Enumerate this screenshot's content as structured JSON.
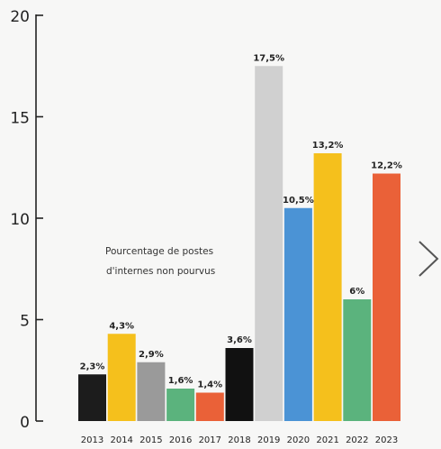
{
  "chart_data": {
    "type": "bar",
    "categories": [
      "2013",
      "2014",
      "2015",
      "2016",
      "2017",
      "2018",
      "2019",
      "2020",
      "2021",
      "2022",
      "2023"
    ],
    "values": [
      2.3,
      4.3,
      2.9,
      1.6,
      1.4,
      3.6,
      17.5,
      10.5,
      13.2,
      6,
      12.2
    ],
    "value_labels": [
      "2,3%",
      "4,3%",
      "2,9%",
      "1,6%",
      "1,4%",
      "3,6%",
      "17,5%",
      "10,5%",
      "13,2%",
      "6%",
      "12,2%"
    ],
    "bar_colors": [
      "#1c1c1c",
      "#f5c01c",
      "#9a9a9a",
      "#5bb37d",
      "#ea6138",
      "#111111",
      "#d0d0d0",
      "#4b93d5",
      "#f5c01c",
      "#5bb37d",
      "#ea6138"
    ],
    "yticks": [
      0,
      5,
      10,
      15,
      20
    ],
    "ylim": [
      0,
      20
    ],
    "annotation_lines": [
      "Pourcentage de postes",
      "d'internes non pourvus"
    ],
    "grid": false,
    "title": "",
    "xlabel": "",
    "ylabel": ""
  },
  "nav": {
    "next_icon": "chevron-right-icon"
  }
}
